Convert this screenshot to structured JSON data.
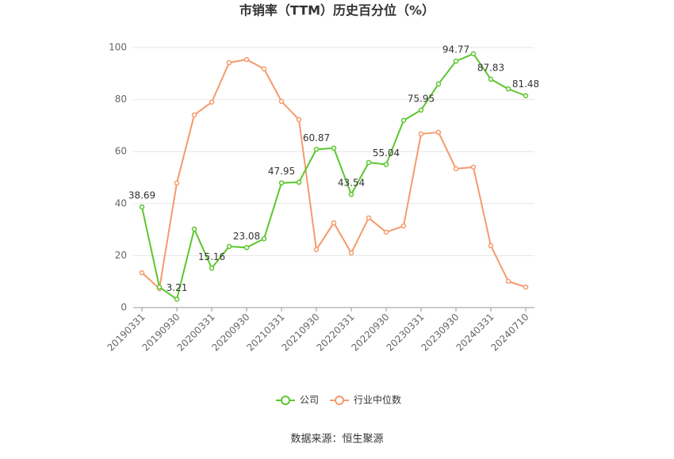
{
  "chart_data": {
    "type": "line",
    "title": "市销率（TTM）历史百分位（%）",
    "source": "数据来源：恒生聚源",
    "categories": [
      "20190331",
      null,
      "20190930",
      null,
      "20200331",
      null,
      "20200930",
      null,
      "20210331",
      null,
      "20210930",
      null,
      "20220331",
      null,
      "20220930",
      null,
      "20230331",
      null,
      "20230930",
      null,
      "20240331",
      null,
      "20240710"
    ],
    "series": [
      {
        "name": "公司",
        "color": "#5cc62d",
        "values": [
          38.69,
          7.9,
          3.21,
          30.2,
          15.16,
          23.5,
          23.08,
          26.5,
          47.95,
          48.2,
          60.87,
          61.3,
          43.54,
          55.8,
          55.04,
          72,
          75.95,
          86,
          94.77,
          97.6,
          87.83,
          84.1,
          81.48
        ],
        "value_labels": [
          "38.69",
          null,
          "3.21",
          null,
          "15.16",
          null,
          "23.08",
          null,
          "47.95",
          null,
          "60.87",
          null,
          "43.54",
          null,
          "55.04",
          null,
          "75.95",
          null,
          "94.77",
          null,
          "87.83",
          null,
          "81.48"
        ]
      },
      {
        "name": "行业中位数",
        "color": "#f59a6c",
        "values": [
          13.4,
          7.3,
          47.9,
          74.1,
          79,
          94.2,
          95.4,
          91.8,
          79.3,
          72.3,
          22.3,
          32.6,
          21,
          34.5,
          29,
          31.4,
          66.8,
          67.4,
          53.4,
          54,
          23.8,
          10.1,
          7.9
        ]
      }
    ],
    "ylim": [
      0,
      100
    ],
    "yticks": [
      0,
      20,
      40,
      60,
      80,
      100
    ],
    "grid": true,
    "legend": "bottom"
  }
}
